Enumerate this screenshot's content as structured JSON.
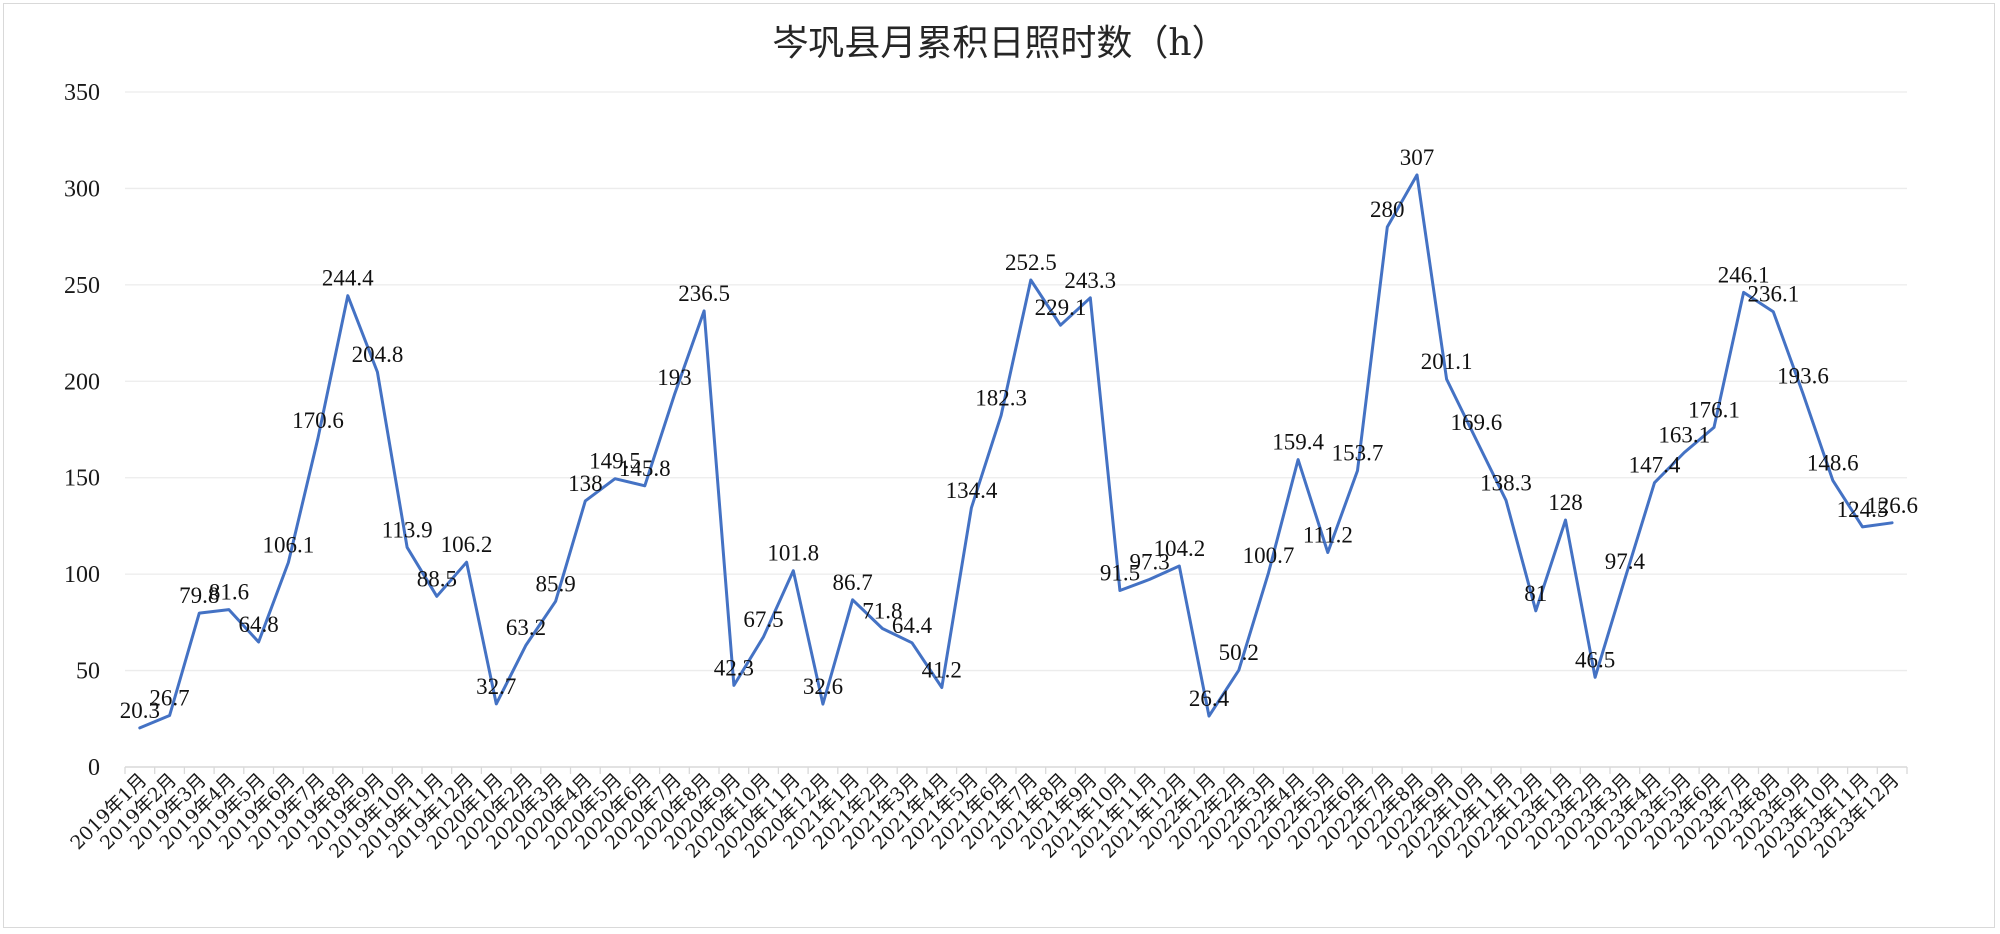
{
  "chart_data": {
    "type": "line",
    "title": "岑巩县月累积日照时数（h）",
    "xlabel": "",
    "ylabel": "",
    "ylim": [
      0,
      350
    ],
    "yticks": [
      0,
      50,
      100,
      150,
      200,
      250,
      300,
      350
    ],
    "grid": true,
    "legend": "none",
    "line_color": "#4472c4",
    "categories": [
      "2019年1月",
      "2019年2月",
      "2019年3月",
      "2019年4月",
      "2019年5月",
      "2019年6月",
      "2019年7月",
      "2019年8月",
      "2019年9月",
      "2019年10月",
      "2019年11月",
      "2019年12月",
      "2020年1月",
      "2020年2月",
      "2020年3月",
      "2020年4月",
      "2020年5月",
      "2020年6月",
      "2020年7月",
      "2020年8月",
      "2020年9月",
      "2020年10月",
      "2020年11月",
      "2020年12月",
      "2021年1月",
      "2021年2月",
      "2021年3月",
      "2021年4月",
      "2021年5月",
      "2021年6月",
      "2021年7月",
      "2021年8月",
      "2021年9月",
      "2021年10月",
      "2021年11月",
      "2021年12月",
      "2022年1月",
      "2022年2月",
      "2022年3月",
      "2022年4月",
      "2022年5月",
      "2022年6月",
      "2022年7月",
      "2022年8月",
      "2022年9月",
      "2022年10月",
      "2022年11月",
      "2022年12月",
      "2023年1月",
      "2023年2月",
      "2023年3月",
      "2023年4月",
      "2023年5月",
      "2023年6月",
      "2023年7月",
      "2023年8月",
      "2023年9月",
      "2023年10月",
      "2023年11月",
      "2023年12月"
    ],
    "series": [
      {
        "values": [
          20.3,
          26.7,
          79.8,
          81.6,
          64.8,
          106.1,
          170.6,
          244.4,
          204.8,
          113.9,
          88.5,
          106.2,
          32.7,
          63.2,
          85.9,
          138,
          149.5,
          145.8,
          193,
          236.5,
          42.3,
          67.5,
          101.8,
          32.6,
          86.7,
          71.8,
          64.4,
          41.2,
          134.4,
          182.3,
          252.5,
          229.1,
          243.3,
          91.5,
          97.3,
          104.2,
          26.4,
          50.2,
          100.7,
          159.4,
          111.2,
          153.7,
          280,
          307,
          201.1,
          169.6,
          138.3,
          81,
          128,
          46.5,
          97.4,
          147.4,
          163.1,
          176.1,
          246.1,
          236.1,
          193.6,
          148.6,
          124.5,
          126.6
        ]
      }
    ]
  }
}
